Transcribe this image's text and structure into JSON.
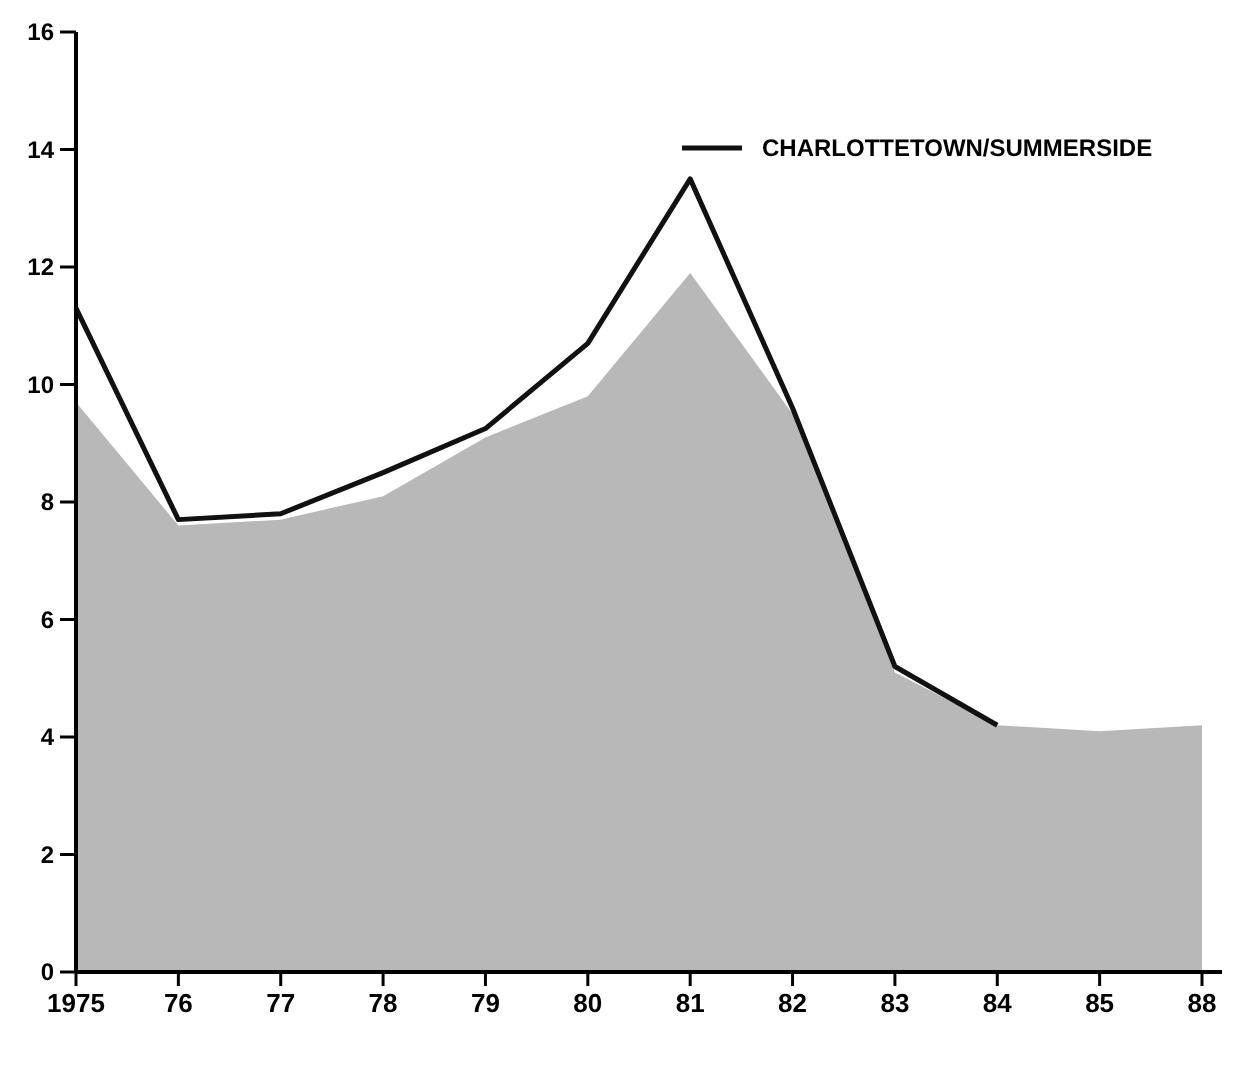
{
  "chart_data": {
    "type": "line",
    "categories": [
      "1975",
      "76",
      "77",
      "78",
      "79",
      "80",
      "81",
      "82",
      "83",
      "84",
      "85",
      "88"
    ],
    "series": [
      {
        "type": "area",
        "color": "#b8b8b8",
        "values": [
          9.7,
          7.6,
          7.7,
          8.1,
          9.1,
          9.8,
          11.9,
          9.5,
          5.1,
          4.2,
          4.1,
          4.2
        ]
      },
      {
        "name": "CHARLOTTETOWN/SUMMERSIDE",
        "color": "#111111",
        "values": [
          11.3,
          7.7,
          7.8,
          8.5,
          9.25,
          10.7,
          13.5,
          9.6,
          5.2,
          4.2,
          null,
          null
        ]
      }
    ],
    "ylim": [
      0,
      16
    ],
    "yticks": [
      0,
      2,
      4,
      6,
      8,
      10,
      12,
      14,
      16
    ],
    "grid": false,
    "legend": "top right",
    "marker": "none",
    "line_style": "solid"
  }
}
